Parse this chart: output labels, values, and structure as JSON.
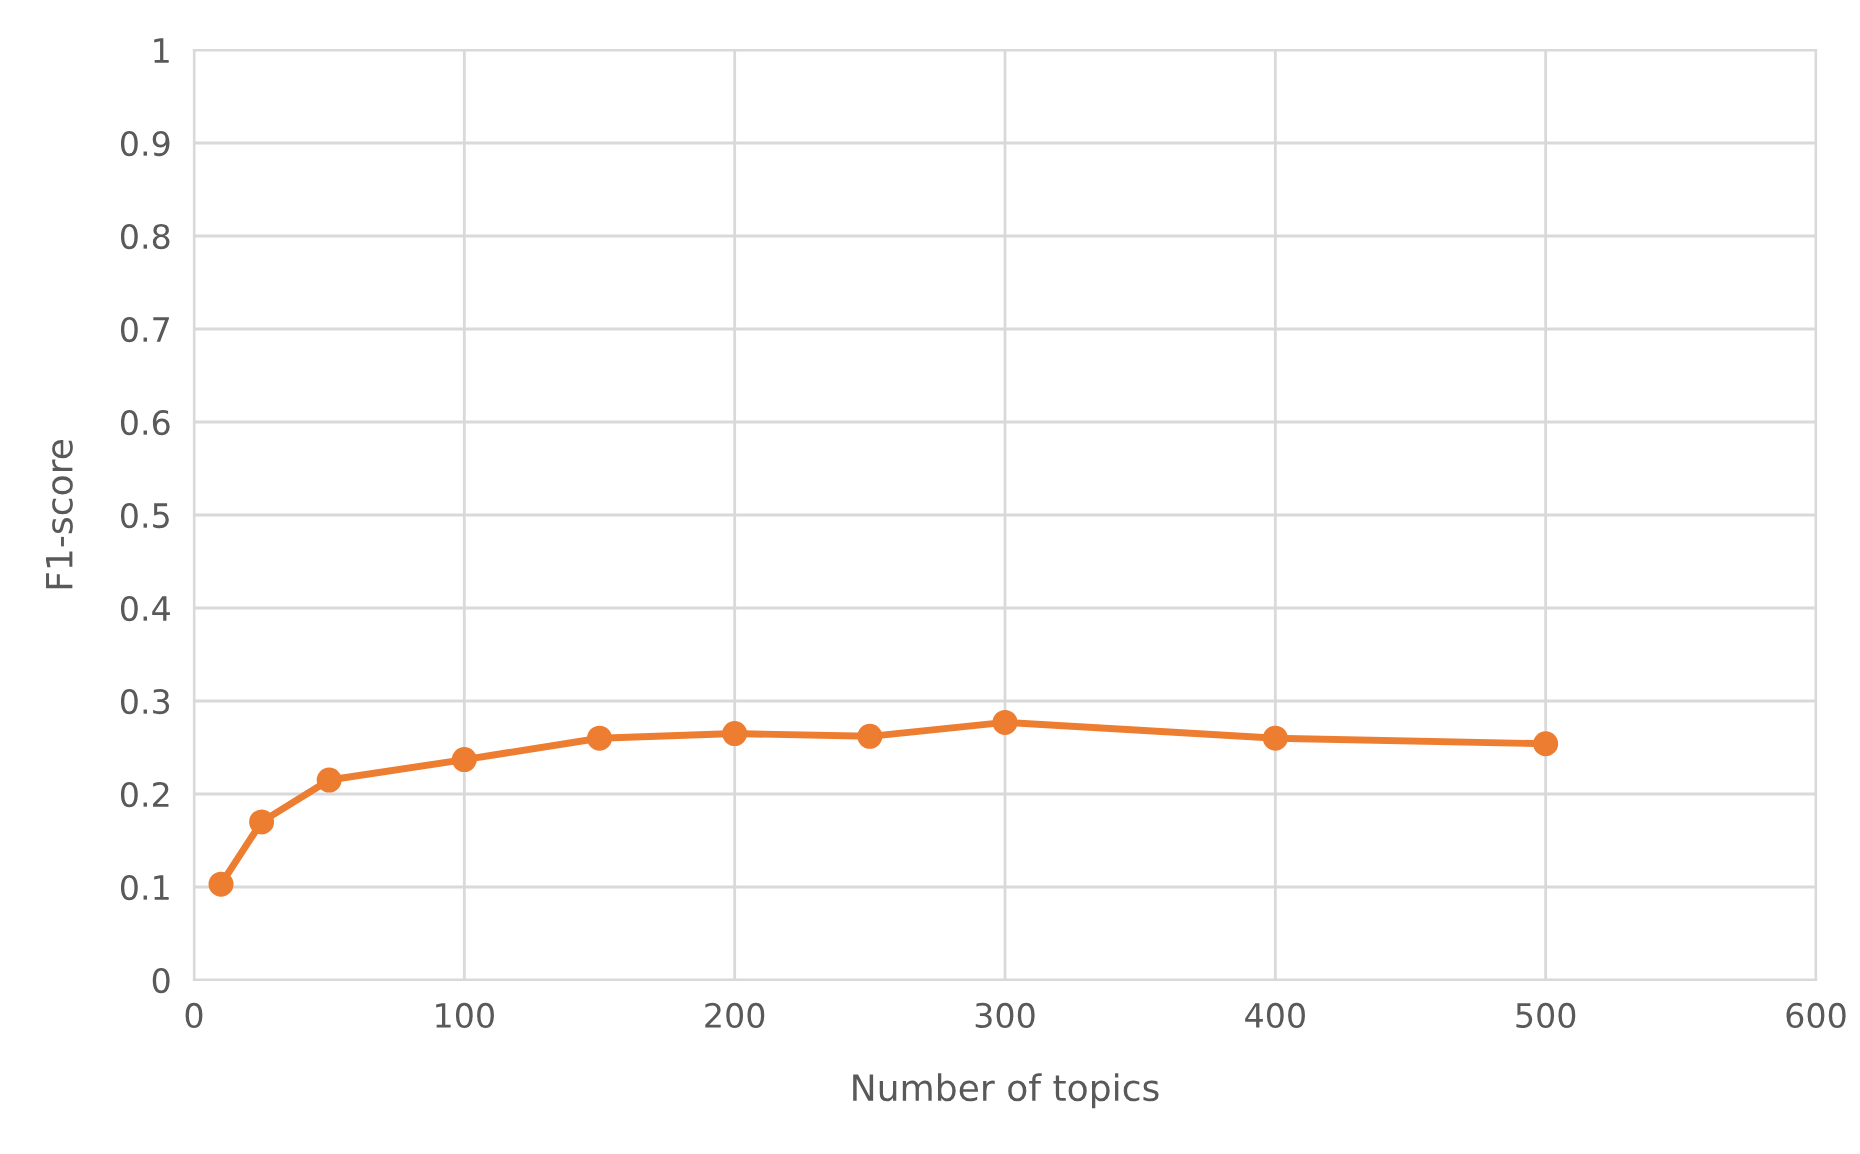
{
  "chart_data": {
    "type": "line",
    "xlabel": "Number of topics",
    "ylabel": "F1-score",
    "x": [
      10,
      25,
      50,
      100,
      150,
      200,
      250,
      300,
      400,
      500
    ],
    "series": [
      {
        "color": "#ed7d31",
        "values": [
          0.103,
          0.17,
          0.215,
          0.237,
          0.26,
          0.265,
          0.262,
          0.277,
          0.26,
          0.254
        ]
      }
    ],
    "xlim": [
      0,
      600
    ],
    "xticks": [
      0,
      100,
      200,
      300,
      400,
      500,
      600
    ],
    "ylim": [
      0,
      1
    ],
    "yticks": [
      0,
      0.1,
      0.2,
      0.3,
      0.4,
      0.5,
      0.6,
      0.7,
      0.8,
      0.9,
      1
    ],
    "grid": true,
    "marker": "circle",
    "line_style": "solid"
  }
}
